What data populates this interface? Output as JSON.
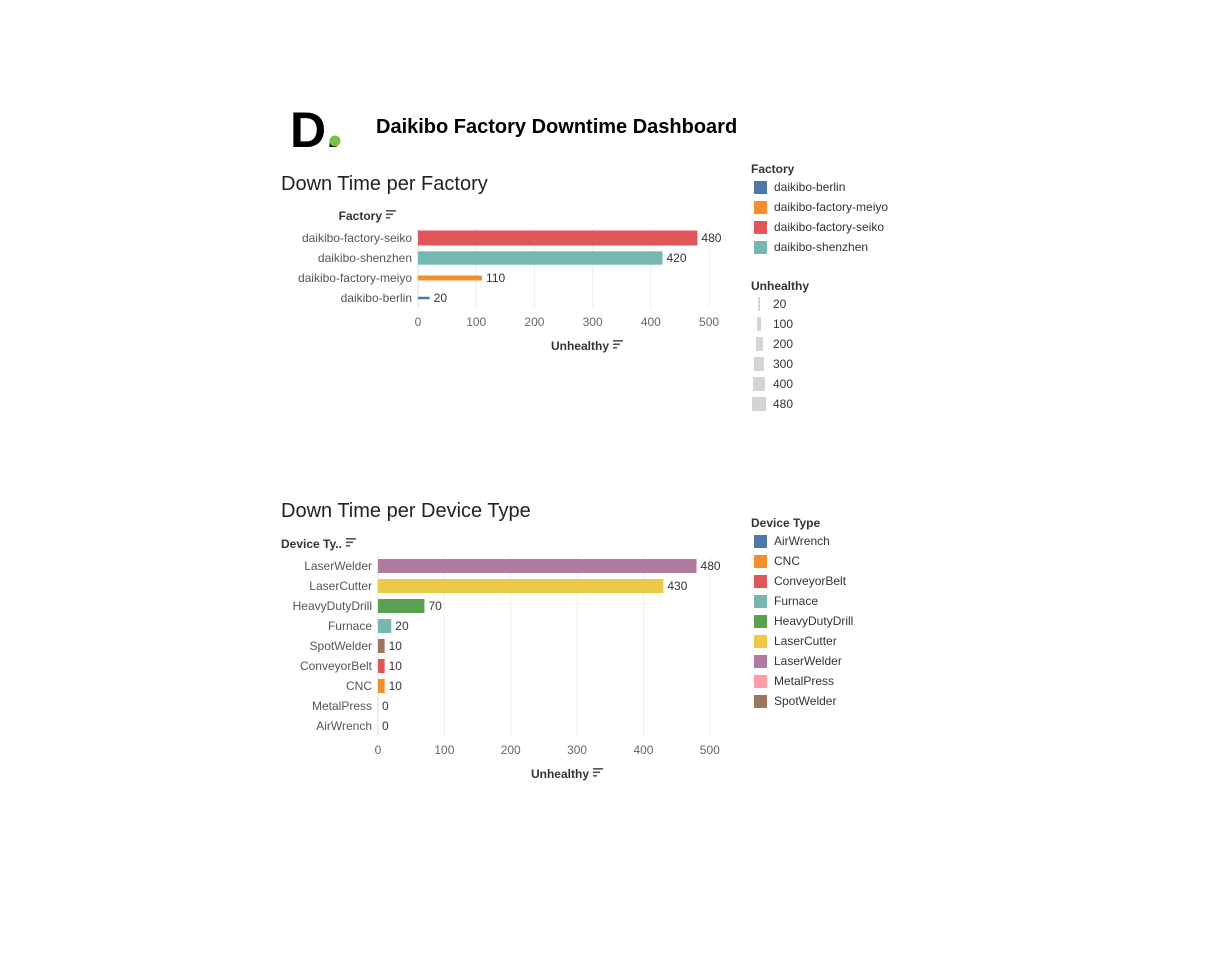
{
  "header": {
    "logo_text": "D.",
    "title": "Daikibo Factory Downtime Dashboard"
  },
  "colors": {
    "logo_dot": "#7ac143",
    "grid": "#eeeeee",
    "size_legend": "#d4d4d4"
  },
  "chart_data": [
    {
      "type": "bar",
      "orientation": "horizontal",
      "title": "Down Time per Factory",
      "ylabel": "Factory",
      "xlabel": "Unhealthy",
      "categories": [
        "daikibo-factory-seiko",
        "daikibo-shenzhen",
        "daikibo-factory-meiyo",
        "daikibo-berlin"
      ],
      "values": [
        480,
        420,
        110,
        20
      ],
      "colors": [
        "#e15759",
        "#76b7b2",
        "#f28e2b",
        "#4e79a7"
      ],
      "bar_sized_by": "Unhealthy",
      "xticks": [
        0,
        100,
        200,
        300,
        400,
        500
      ],
      "xlim": [
        0,
        560
      ],
      "grid": true
    },
    {
      "type": "bar",
      "orientation": "horizontal",
      "title": "Down Time per Device Type",
      "ylabel": "Device Ty..",
      "xlabel": "Unhealthy",
      "categories": [
        "LaserWelder",
        "LaserCutter",
        "HeavyDutyDrill",
        "Furnace",
        "SpotWelder",
        "ConveyorBelt",
        "CNC",
        "MetalPress",
        "AirWrench"
      ],
      "values": [
        480,
        430,
        70,
        20,
        10,
        10,
        10,
        0,
        0
      ],
      "colors": [
        "#b07aa1",
        "#edc948",
        "#59a14f",
        "#76b7b2",
        "#9c755f",
        "#e15759",
        "#f28e2b",
        "#ff9da7",
        "#4e79a7"
      ],
      "xticks": [
        0,
        100,
        200,
        300,
        400,
        500
      ],
      "xlim": [
        0,
        550
      ],
      "grid": true
    }
  ],
  "legends": {
    "factory": {
      "title": "Factory",
      "items": [
        {
          "label": "daikibo-berlin",
          "color": "#4e79a7"
        },
        {
          "label": "daikibo-factory-meiyo",
          "color": "#f28e2b"
        },
        {
          "label": "daikibo-factory-seiko",
          "color": "#e15759"
        },
        {
          "label": "daikibo-shenzhen",
          "color": "#76b7b2"
        }
      ]
    },
    "unhealthy": {
      "title": "Unhealthy",
      "items": [
        {
          "label": "20",
          "value": 20
        },
        {
          "label": "100",
          "value": 100
        },
        {
          "label": "200",
          "value": 200
        },
        {
          "label": "300",
          "value": 300
        },
        {
          "label": "400",
          "value": 400
        },
        {
          "label": "480",
          "value": 480
        }
      ]
    },
    "device": {
      "title": "Device Type",
      "items": [
        {
          "label": "AirWrench",
          "color": "#4e79a7"
        },
        {
          "label": "CNC",
          "color": "#f28e2b"
        },
        {
          "label": "ConveyorBelt",
          "color": "#e15759"
        },
        {
          "label": "Furnace",
          "color": "#76b7b2"
        },
        {
          "label": "HeavyDutyDrill",
          "color": "#59a14f"
        },
        {
          "label": "LaserCutter",
          "color": "#edc948"
        },
        {
          "label": "LaserWelder",
          "color": "#b07aa1"
        },
        {
          "label": "MetalPress",
          "color": "#ff9da7"
        },
        {
          "label": "SpotWelder",
          "color": "#9c755f"
        }
      ]
    }
  }
}
